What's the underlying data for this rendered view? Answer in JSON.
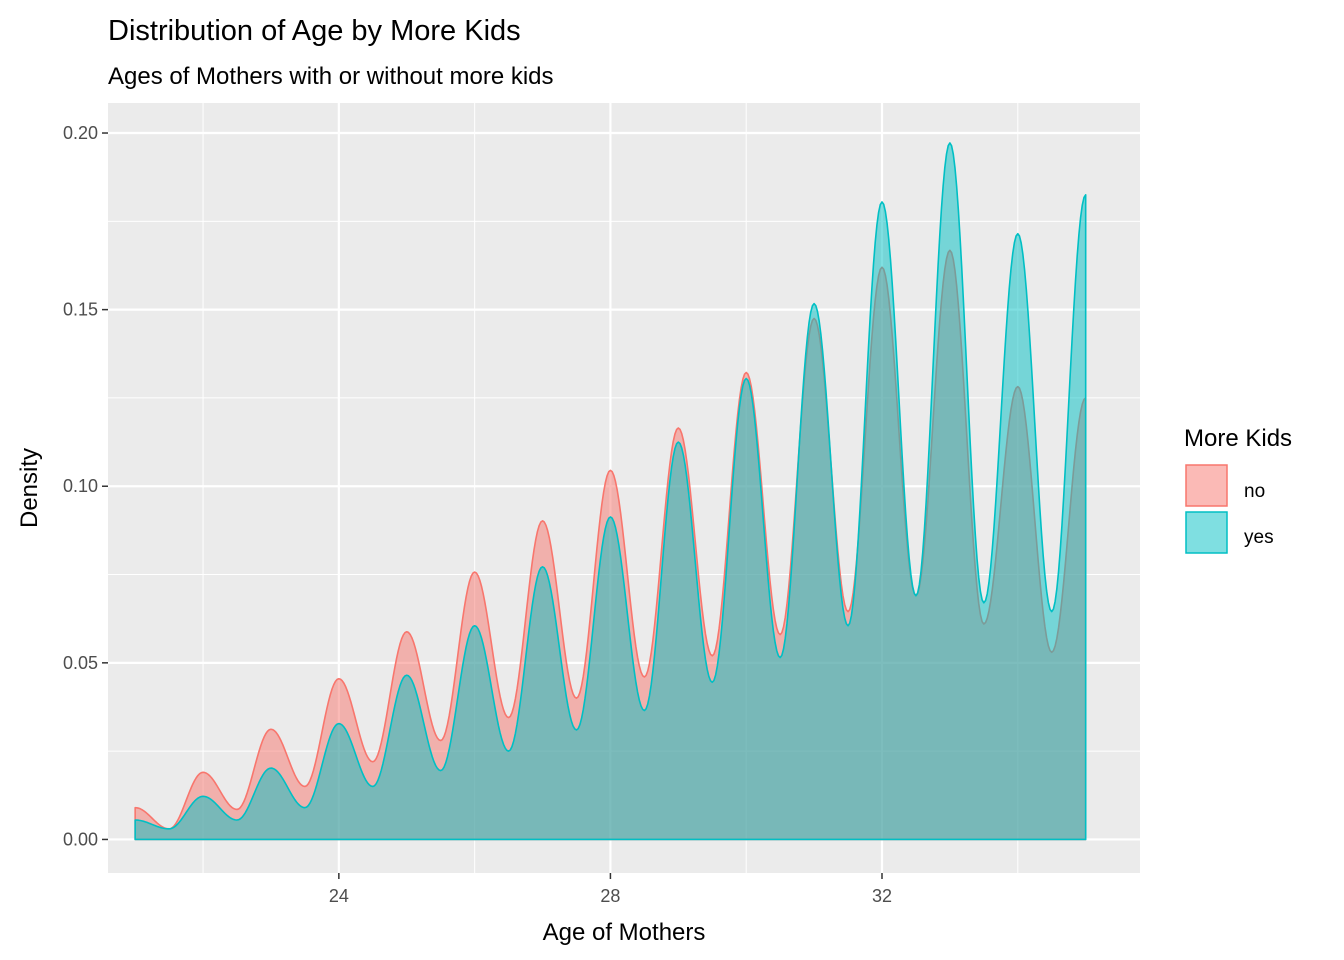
{
  "chart_data": {
    "type": "area",
    "title": "Distribution of Age by More Kids",
    "subtitle": "Ages of Mothers with or without more kids",
    "xlabel": "Age of Mothers",
    "ylabel": "Density",
    "xlim": [
      20.6,
      35.8
    ],
    "ylim": [
      -0.0095,
      0.2085
    ],
    "x_ticks": [
      24,
      28,
      32
    ],
    "x_tick_labels": [
      "24",
      "28",
      "32"
    ],
    "y_ticks": [
      0.0,
      0.05,
      0.1,
      0.15,
      0.2
    ],
    "y_tick_labels": [
      "0.00",
      "0.05",
      "0.10",
      "0.15",
      "0.20"
    ],
    "x_minor": [
      22,
      26,
      30,
      34
    ],
    "y_minor": [
      0.025,
      0.075,
      0.125,
      0.175
    ],
    "grid": true,
    "legend": {
      "title": "More Kids",
      "position": "right"
    },
    "series": [
      {
        "name": "no",
        "color": "#F8766D",
        "x_start": 21,
        "x_end": 35,
        "peaks": [
          0.009,
          0.019,
          0.0312,
          0.0455,
          0.0588,
          0.0757,
          0.0902,
          0.1045,
          0.1165,
          0.1322,
          0.1475,
          0.162,
          0.1668,
          0.1282,
          0.125
        ],
        "troughs": [
          0.003,
          0.0085,
          0.015,
          0.022,
          0.028,
          0.0345,
          0.04,
          0.046,
          0.052,
          0.058,
          0.0645,
          0.069,
          0.061,
          0.053
        ]
      },
      {
        "name": "yes",
        "color": "#00BFC4",
        "x_start": 21,
        "x_end": 35,
        "peaks": [
          0.0055,
          0.0122,
          0.0202,
          0.0328,
          0.0465,
          0.0605,
          0.0772,
          0.0913,
          0.1125,
          0.1305,
          0.1517,
          0.1805,
          0.1972,
          0.1715,
          0.1825
        ],
        "troughs": [
          0.003,
          0.0055,
          0.009,
          0.015,
          0.0195,
          0.025,
          0.031,
          0.0365,
          0.0445,
          0.0515,
          0.0605,
          0.069,
          0.067,
          0.0645
        ]
      }
    ]
  }
}
